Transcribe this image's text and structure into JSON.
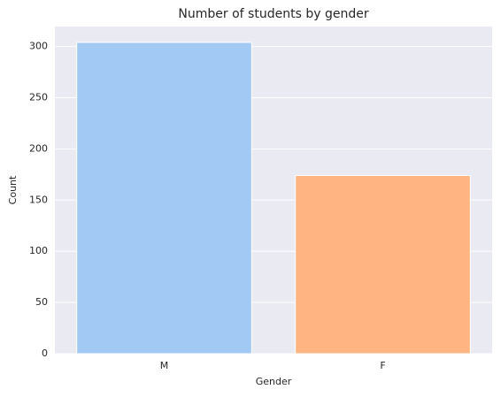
{
  "chart_data": {
    "type": "bar",
    "title": "Number of students by gender",
    "x_label": "Gender",
    "y_label": "Count",
    "categories": [
      "M",
      "F"
    ],
    "values": [
      304,
      174
    ],
    "colors": [
      "#a1c9f4",
      "#ffb482"
    ],
    "ylim": [
      0,
      319.5
    ],
    "yticks": [
      0,
      50,
      100,
      150,
      200,
      250,
      300
    ],
    "grid": true
  }
}
